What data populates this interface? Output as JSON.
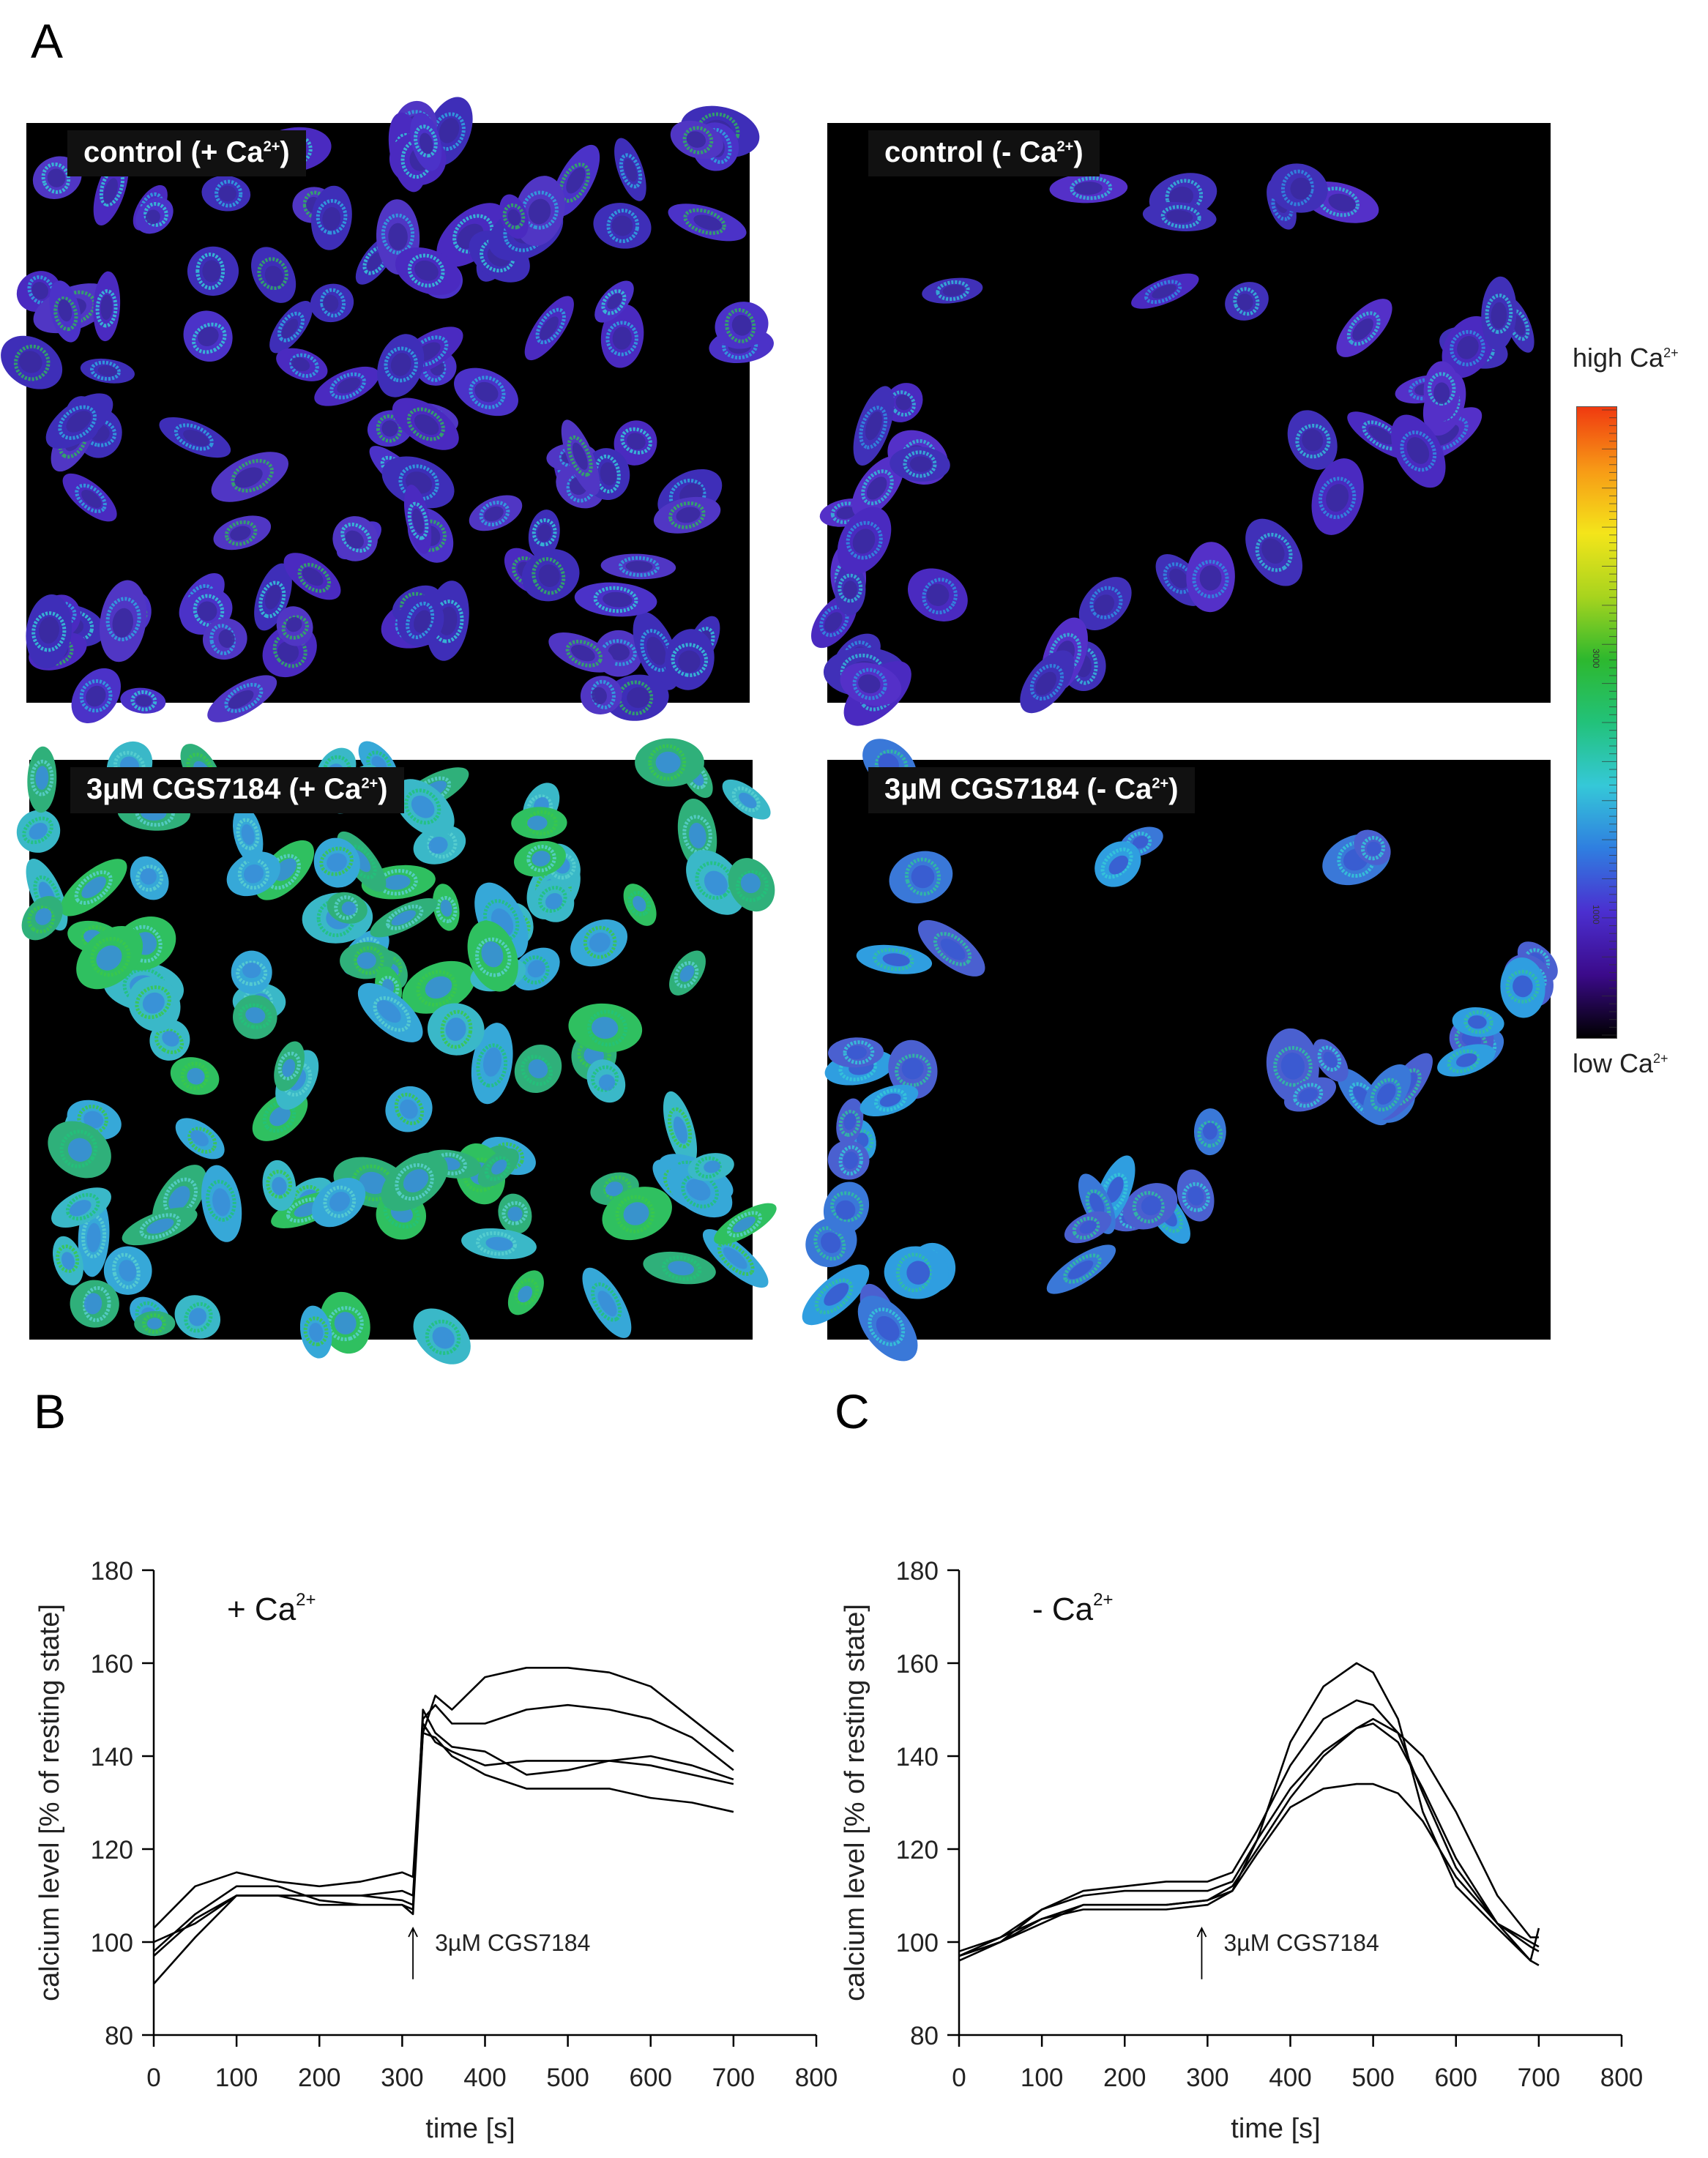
{
  "panels": {
    "a": "A",
    "b": "B",
    "c": "C"
  },
  "images": [
    {
      "title": "control (+ Ca",
      "sup": "2+",
      "close": ")",
      "tone": "low-dense"
    },
    {
      "title": "control (- Ca",
      "sup": "2+",
      "close": ")",
      "tone": "low-sparse"
    },
    {
      "title": "3µM CGS7184 (+ Ca",
      "sup": "2+",
      "close": ")",
      "tone": "high-dense"
    },
    {
      "title": "3µM CGS7184 (- Ca",
      "sup": "2+",
      "close": ")",
      "tone": "mid-sparse"
    }
  ],
  "colorbar": {
    "high_label": "high Ca",
    "low_label": "low Ca",
    "sup": "2+",
    "colors": [
      "#000000",
      "#3b0a8a",
      "#4b2fd0",
      "#2f7ee0",
      "#35c8d8",
      "#22c27a",
      "#2db82e",
      "#a8d41e",
      "#f4e51a",
      "#f79a16",
      "#f03a10"
    ],
    "tick_labels": [
      "1000",
      "3000"
    ]
  },
  "chart_data": [
    {
      "type": "line",
      "panel": "B",
      "annotation_main": "+ Ca",
      "annotation_sup": "2+",
      "arrow_label": "3µM CGS7184",
      "arrow_x": 313,
      "xlabel": "time [s]",
      "ylabel": "calcium level [% of resting state]",
      "xlim": [
        0,
        800
      ],
      "ylim": [
        80,
        180
      ],
      "xticks": [
        0,
        100,
        200,
        300,
        400,
        500,
        600,
        700,
        800
      ],
      "yticks": [
        80,
        100,
        120,
        140,
        160,
        180
      ],
      "line_color": "#000000",
      "series": [
        {
          "x": [
            0,
            50,
            100,
            150,
            200,
            250,
            300,
            313,
            325,
            340,
            360,
            400,
            450,
            500,
            550,
            600,
            650,
            700
          ],
          "y": [
            100,
            104,
            110,
            110,
            110,
            110,
            111,
            110,
            145,
            153,
            150,
            157,
            159,
            159,
            158,
            155,
            148,
            141
          ]
        },
        {
          "x": [
            0,
            50,
            100,
            150,
            200,
            250,
            300,
            313,
            325,
            340,
            360,
            400,
            450,
            500,
            550,
            600,
            650,
            700
          ],
          "y": [
            103,
            112,
            115,
            113,
            112,
            113,
            115,
            114,
            148,
            151,
            147,
            147,
            150,
            151,
            150,
            148,
            144,
            137
          ]
        },
        {
          "x": [
            0,
            50,
            100,
            150,
            200,
            250,
            300,
            313,
            325,
            340,
            360,
            400,
            450,
            500,
            550,
            600,
            650,
            700
          ],
          "y": [
            91,
            101,
            110,
            110,
            108,
            108,
            108,
            107,
            150,
            145,
            142,
            141,
            136,
            137,
            139,
            140,
            138,
            135
          ]
        },
        {
          "x": [
            0,
            50,
            100,
            150,
            200,
            250,
            300,
            313,
            325,
            340,
            360,
            400,
            450,
            500,
            550,
            600,
            650,
            700
          ],
          "y": [
            97,
            105,
            110,
            110,
            110,
            110,
            109,
            108,
            147,
            143,
            141,
            138,
            139,
            139,
            139,
            138,
            136,
            134
          ]
        },
        {
          "x": [
            0,
            50,
            100,
            150,
            200,
            250,
            300,
            313,
            325,
            340,
            360,
            400,
            450,
            500,
            550,
            600,
            650,
            700
          ],
          "y": [
            98,
            106,
            112,
            112,
            109,
            108,
            108,
            106,
            145,
            144,
            140,
            136,
            133,
            133,
            133,
            131,
            130,
            128
          ]
        }
      ]
    },
    {
      "type": "line",
      "panel": "C",
      "annotation_main": "- Ca",
      "annotation_sup": "2+",
      "arrow_label": "3µM CGS7184",
      "arrow_x": 293,
      "xlabel": "time [s]",
      "ylabel": "calcium level [% of resting state]",
      "xlim": [
        0,
        800
      ],
      "ylim": [
        80,
        180
      ],
      "xticks": [
        0,
        100,
        200,
        300,
        400,
        500,
        600,
        700,
        800
      ],
      "yticks": [
        80,
        100,
        120,
        140,
        160,
        180
      ],
      "line_color": "#000000",
      "series": [
        {
          "x": [
            0,
            50,
            100,
            150,
            200,
            250,
            300,
            330,
            360,
            400,
            440,
            480,
            500,
            530,
            560,
            600,
            650,
            690,
            700
          ],
          "y": [
            97,
            100,
            104,
            108,
            108,
            108,
            109,
            111,
            122,
            143,
            155,
            160,
            158,
            148,
            128,
            112,
            103,
            96,
            103
          ]
        },
        {
          "x": [
            0,
            50,
            100,
            150,
            200,
            250,
            300,
            330,
            360,
            400,
            440,
            480,
            500,
            530,
            560,
            600,
            650,
            690,
            700
          ],
          "y": [
            98,
            101,
            107,
            111,
            112,
            113,
            113,
            115,
            124,
            138,
            148,
            152,
            151,
            145,
            132,
            116,
            104,
            99,
            98
          ]
        },
        {
          "x": [
            0,
            50,
            100,
            150,
            200,
            250,
            300,
            330,
            360,
            400,
            440,
            480,
            500,
            530,
            560,
            600,
            650,
            690,
            700
          ],
          "y": [
            96,
            100,
            107,
            110,
            111,
            111,
            111,
            113,
            122,
            133,
            141,
            146,
            148,
            145,
            140,
            128,
            110,
            101,
            101
          ]
        },
        {
          "x": [
            0,
            50,
            100,
            150,
            200,
            250,
            300,
            330,
            360,
            400,
            440,
            480,
            500,
            530,
            560,
            600,
            650,
            690,
            700
          ],
          "y": [
            97,
            101,
            105,
            108,
            108,
            108,
            109,
            112,
            120,
            131,
            140,
            146,
            147,
            143,
            133,
            118,
            104,
            96,
            95
          ]
        },
        {
          "x": [
            0,
            50,
            100,
            150,
            200,
            250,
            300,
            330,
            360,
            400,
            440,
            480,
            500,
            530,
            560,
            600,
            650,
            690,
            700
          ],
          "y": [
            97,
            100,
            105,
            107,
            107,
            107,
            108,
            111,
            119,
            129,
            133,
            134,
            134,
            132,
            126,
            114,
            104,
            100,
            99
          ]
        }
      ]
    }
  ]
}
